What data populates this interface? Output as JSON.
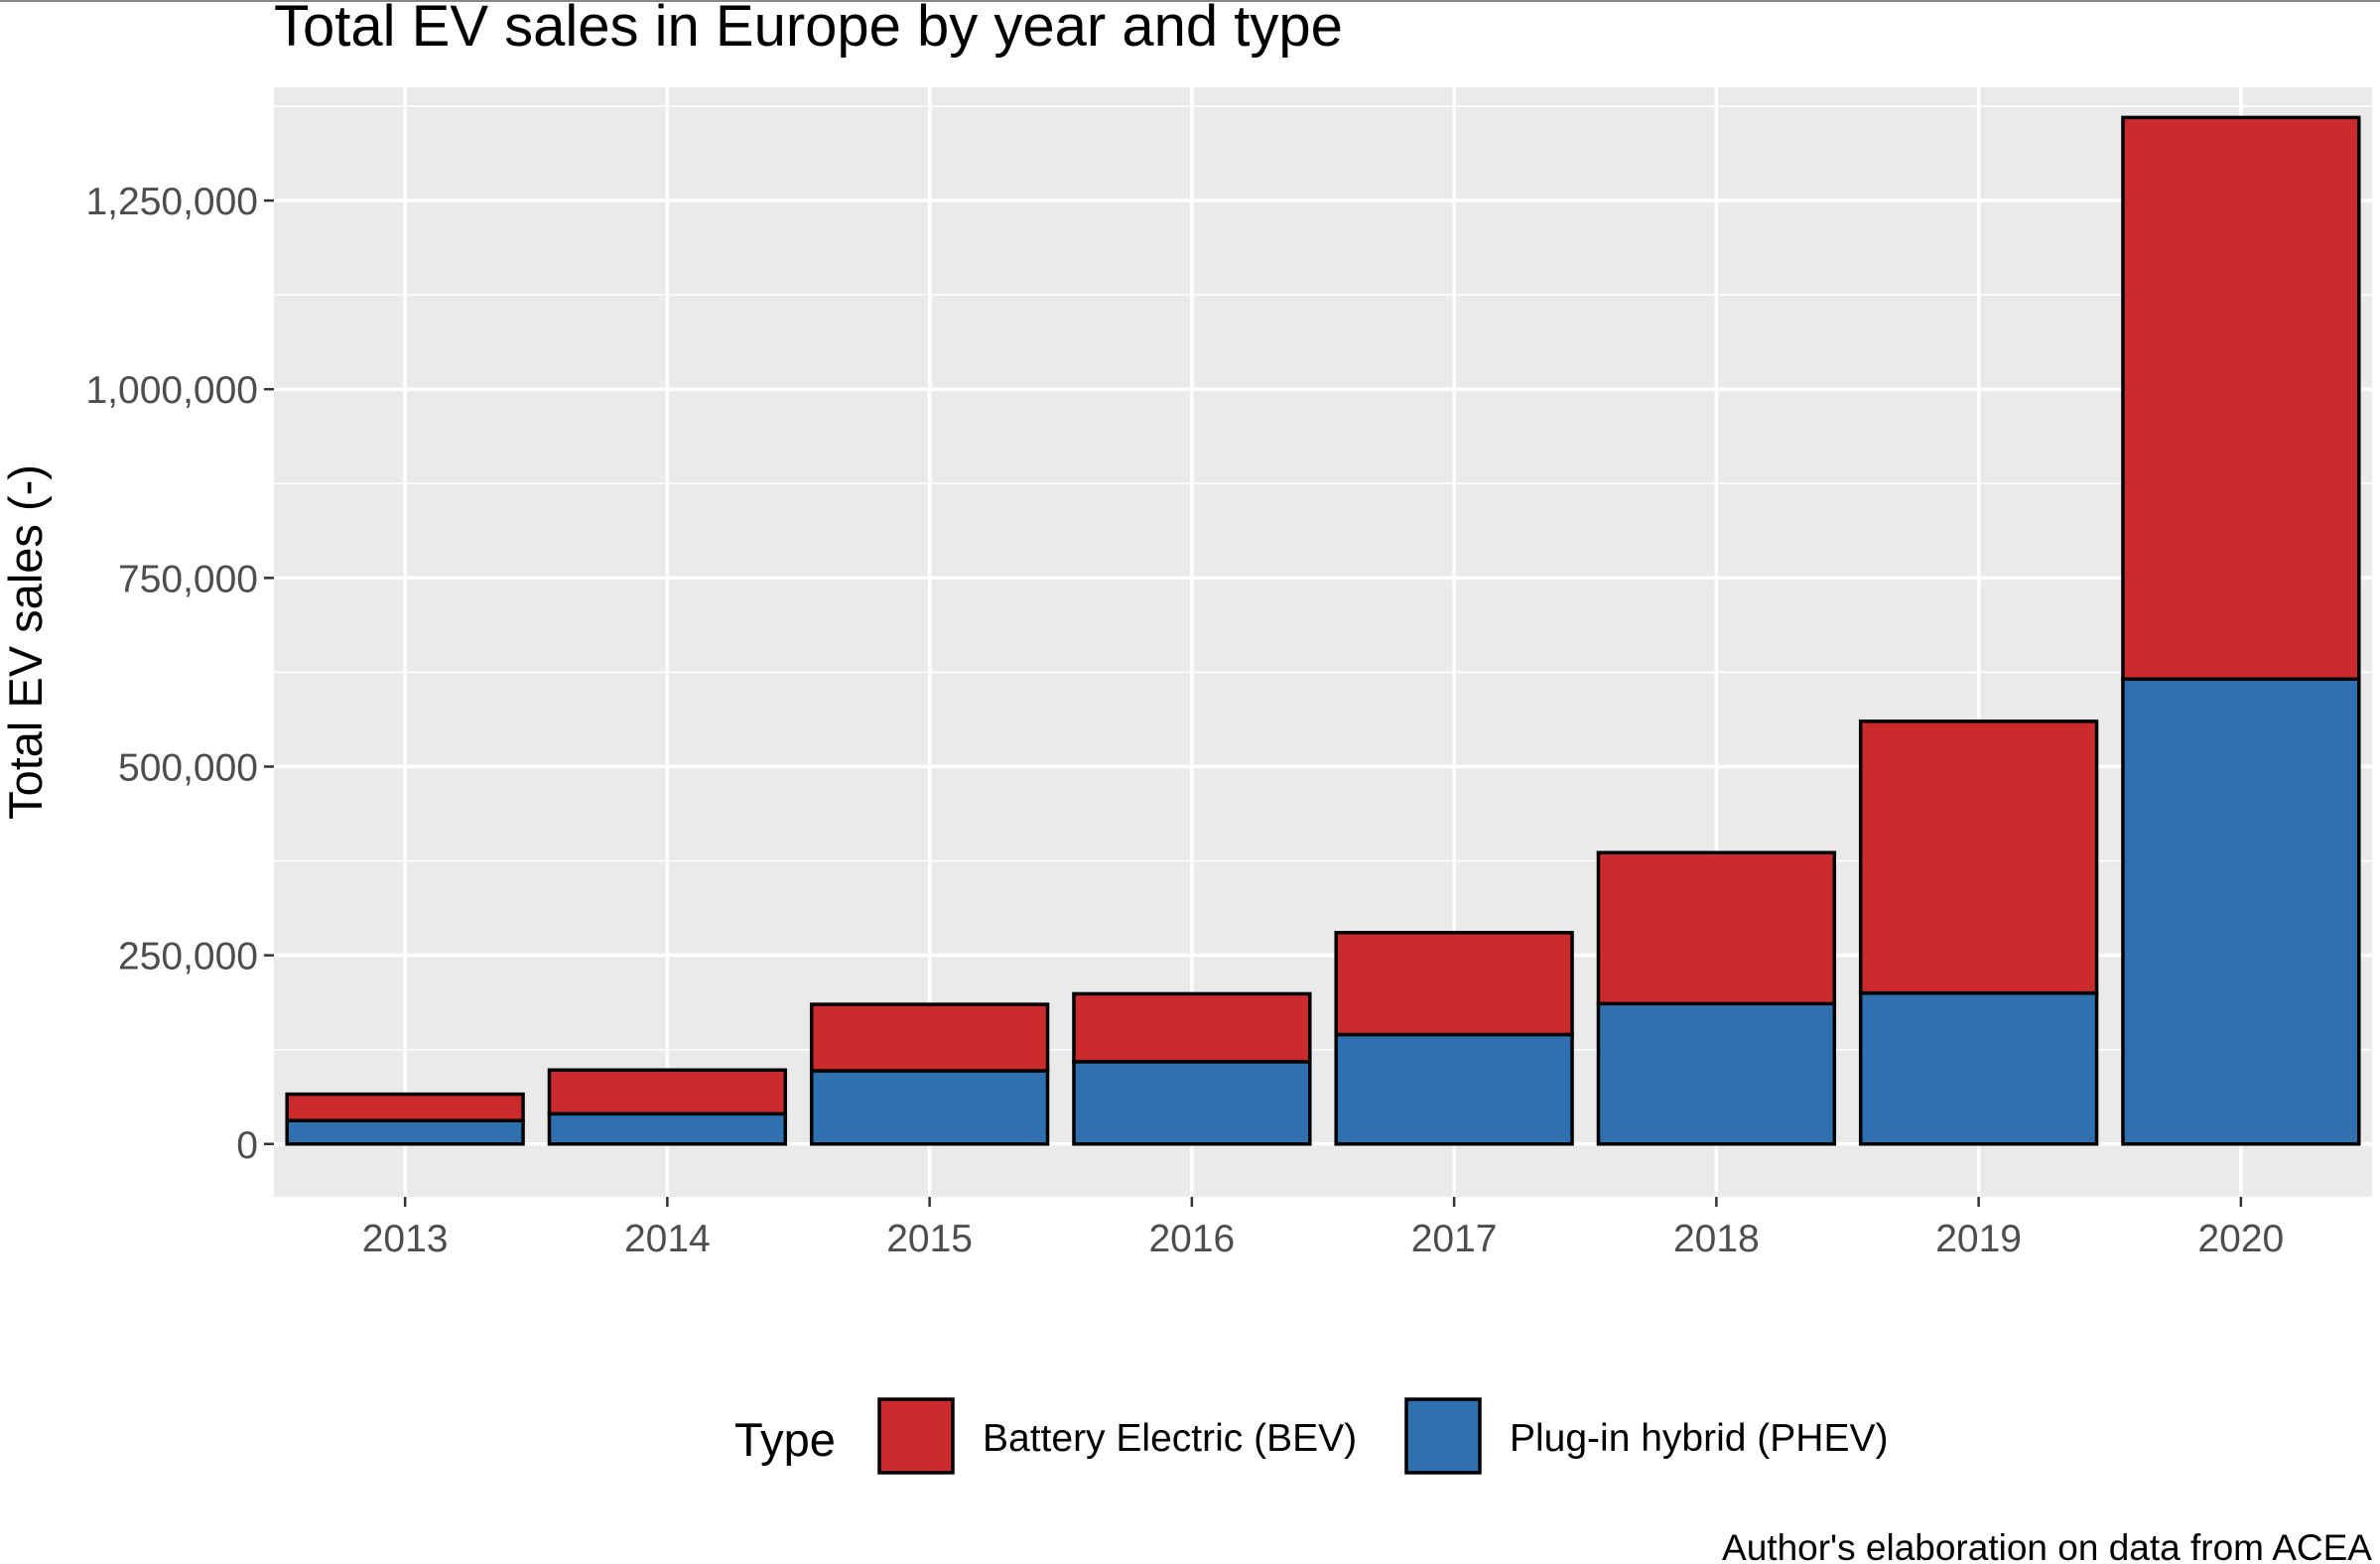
{
  "chart_data": {
    "type": "bar",
    "stacked": true,
    "title": "Total EV sales in Europe by year and type",
    "xlabel": "",
    "ylabel": "Total EV sales (-)",
    "caption": "Author's elaboration on data from ACEA",
    "categories": [
      "2013",
      "2014",
      "2015",
      "2016",
      "2017",
      "2018",
      "2019",
      "2020"
    ],
    "series": [
      {
        "name": "Plug-in hybrid (PHEV)",
        "color": "#2e70b0",
        "values": [
          31000,
          40000,
          97000,
          109000,
          145000,
          186000,
          200000,
          616000
        ]
      },
      {
        "name": "Battery Electric (BEV)",
        "color": "#cc2b2e",
        "values": [
          35000,
          58000,
          88000,
          90000,
          135000,
          200000,
          360000,
          744000
        ]
      }
    ],
    "ylim": [
      -70000,
      1400000
    ],
    "yticks": [
      0,
      250000,
      500000,
      750000,
      1000000,
      1250000
    ],
    "ytick_labels": [
      "0",
      "250,000",
      "500,000",
      "750,000",
      "1,000,000",
      "1,250,000"
    ],
    "legend": {
      "title": "Type",
      "position": "bottom",
      "items": [
        {
          "label": "Battery Electric (BEV)",
          "color": "#cc2b2e"
        },
        {
          "label": "Plug-in hybrid (PHEV)",
          "color": "#2e70b0"
        }
      ]
    },
    "grid": true,
    "panel_background": "#ebe9ea",
    "bar_outline": "#000000"
  }
}
